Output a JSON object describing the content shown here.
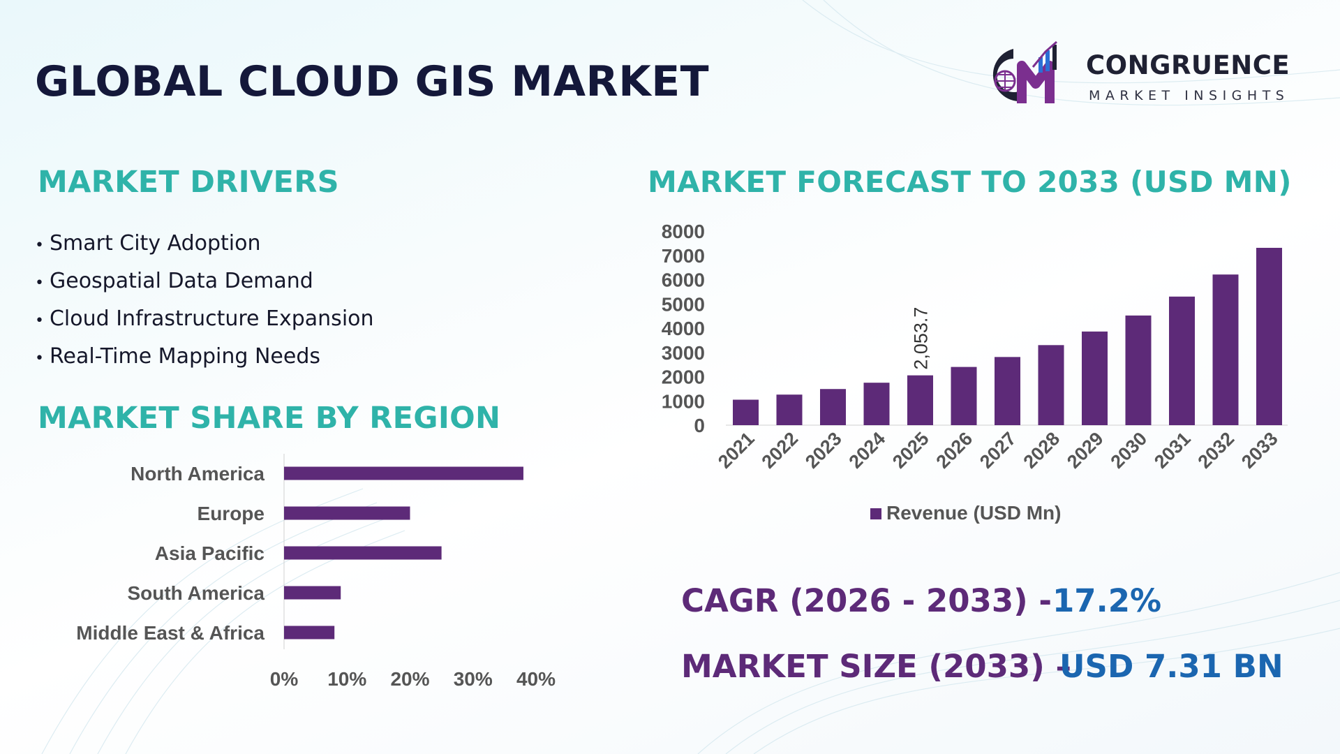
{
  "header": {
    "title": "GLOBAL CLOUD GIS MARKET"
  },
  "brand": {
    "name": "CONGRUENCE",
    "tagline": "MARKET INSIGHTS",
    "colors": {
      "dark": "#1f2133",
      "purple": "#7b2f8f",
      "blue": "#2b6fd6"
    }
  },
  "drivers": {
    "heading": "MARKET DRIVERS",
    "items": [
      "Smart City Adoption",
      "Geospatial Data Demand",
      "Cloud Infrastructure Expansion",
      "Real-Time Mapping Needs"
    ]
  },
  "stats": {
    "cagr_label": "CAGR (2026 - 2033) -",
    "cagr_value": "17.2%",
    "size_label": "MARKET SIZE (2033) –",
    "size_value": "USD 7.31 BN"
  },
  "colors": {
    "heading": "#2fb3a9",
    "bar": "#5d2a78",
    "title": "#14183a",
    "stat_value": "#1b66b0"
  },
  "chart_data": [
    {
      "type": "bar",
      "orientation": "horizontal",
      "title": "MARKET SHARE BY REGION",
      "categories": [
        "North America",
        "Europe",
        "Asia Pacific",
        "South America",
        "Middle East & Africa"
      ],
      "values": [
        38,
        20,
        25,
        9,
        8
      ],
      "unit": "%",
      "xlim": [
        0,
        40
      ],
      "xticks": [
        "0%",
        "10%",
        "20%",
        "30%",
        "40%"
      ],
      "grid": false,
      "legend": "none"
    },
    {
      "type": "bar",
      "orientation": "vertical",
      "title": "MARKET FORECAST TO 2033 (USD MN)",
      "categories": [
        "2021",
        "2022",
        "2023",
        "2024",
        "2025",
        "2026",
        "2027",
        "2028",
        "2029",
        "2030",
        "2031",
        "2032",
        "2033"
      ],
      "series": [
        {
          "name": "Revenue (USD Mn)",
          "values": [
            1050,
            1260,
            1490,
            1750,
            2053.7,
            2400,
            2810,
            3300,
            3860,
            4520,
            5300,
            6210,
            7310
          ]
        }
      ],
      "data_labels": [
        {
          "category": "2025",
          "text": "2,053.7"
        }
      ],
      "ylim": [
        0,
        8000
      ],
      "yticks": [
        "0",
        "1000",
        "2000",
        "3000",
        "4000",
        "5000",
        "6000",
        "7000",
        "8000"
      ],
      "grid": false,
      "legend": "bottom-center"
    }
  ]
}
